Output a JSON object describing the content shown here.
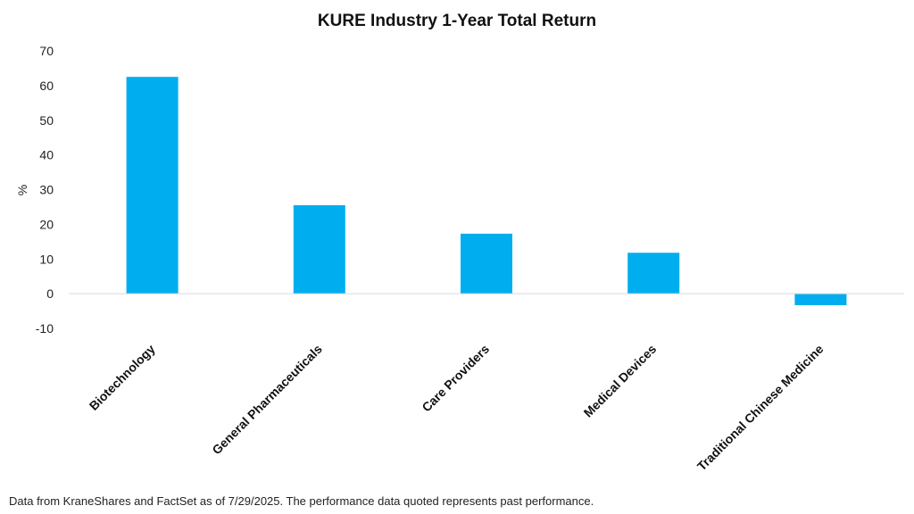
{
  "chart_data": {
    "type": "bar",
    "title": "KURE Industry 1-Year Total Return",
    "xlabel": "",
    "ylabel": "%",
    "categories": [
      "Biotechnology",
      "General Pharmaceuticals",
      "Care Providers",
      "Medical Devices",
      "Traditional Chinese Medicine"
    ],
    "values": [
      62.5,
      25.5,
      17.3,
      11.8,
      -3.3
    ],
    "ylim": [
      -10,
      70
    ],
    "yticks": [
      "-10",
      "0",
      "10",
      "20",
      "30",
      "40",
      "50",
      "60",
      "70"
    ],
    "grid": false,
    "legend": "none",
    "bar_color": "#00AEEF",
    "axis_color": "#D9D9D9"
  },
  "footnote": "Data from KraneShares and FactSet as of 7/29/2025. The performance data quoted represents past performance."
}
